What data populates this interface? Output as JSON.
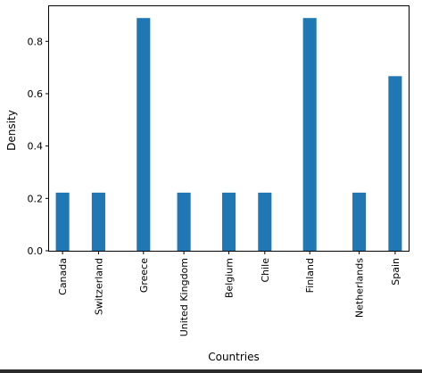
{
  "chart_data": {
    "type": "bar",
    "categories": [
      "Canada",
      "Switzerland",
      "Greece",
      "United Kingdom",
      "Belgium",
      "Chile",
      "Finland",
      "Netherlands",
      "Spain"
    ],
    "x": [
      -0.6,
      0.2,
      1.2,
      2.1,
      3.1,
      3.9,
      4.9,
      6.0,
      6.8
    ],
    "values": [
      0.222,
      0.222,
      0.889,
      0.222,
      0.222,
      0.222,
      0.889,
      0.222,
      0.667
    ],
    "xlim": [
      -0.9,
      7.1
    ],
    "ylim": [
      0,
      0.934
    ],
    "yticks": [
      0.0,
      0.2,
      0.4,
      0.6,
      0.8
    ],
    "ytick_labels": [
      "0.0",
      "0.2",
      "0.4",
      "0.6",
      "0.8"
    ],
    "title": "",
    "xlabel": "Countries",
    "ylabel": "Density",
    "bar_color": "#1f77b4",
    "grid": false
  }
}
